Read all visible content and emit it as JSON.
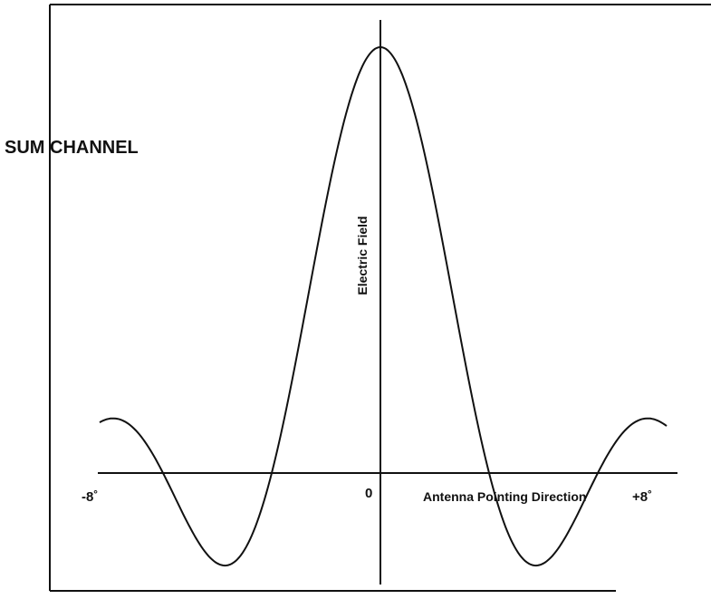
{
  "title": "SUM CHANNEL",
  "y_axis_label": "Electric Field",
  "x_axis_label": "Antenna Pointing Direction",
  "x_labels": {
    "left": "-8˚",
    "center": "0",
    "right": "+8˚"
  }
}
